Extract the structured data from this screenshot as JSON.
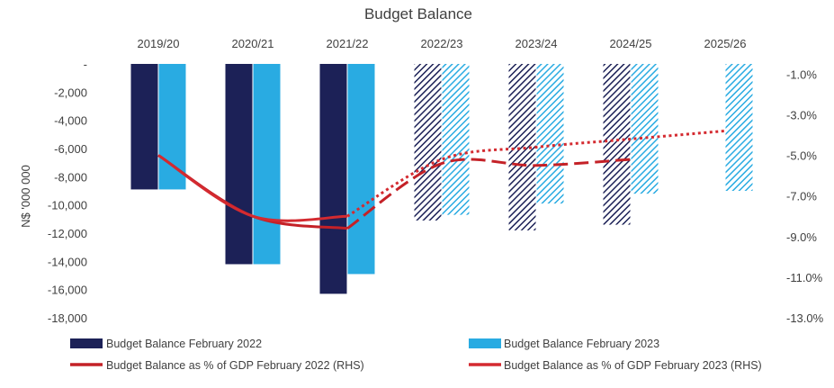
{
  "chart_data": {
    "type": "bar",
    "title": "Budget Balance",
    "ylabel": "N$ '000 000",
    "categories": [
      "2019/20",
      "2020/21",
      "2021/22",
      "2022/23",
      "2023/24",
      "2024/25",
      "2025/26"
    ],
    "ylim": [
      -18000,
      0
    ],
    "y_ticks": [
      "-",
      "-2,000",
      "-4,000",
      "-6,000",
      "-8,000",
      "-10,000",
      "-12,000",
      "-14,000",
      "-16,000",
      "-18,000"
    ],
    "y2lim": [
      -13.0,
      -0.5
    ],
    "y2_ticks": [
      "-1.0%",
      "-3.0%",
      "-5.0%",
      "-7.0%",
      "-9.0%",
      "-11.0%",
      "-13.0%"
    ],
    "series": [
      {
        "name": "Budget Balance February 2022",
        "type": "bar",
        "color": "#1c2157",
        "values": [
          -8900,
          -14200,
          -16300,
          -11100,
          -11800,
          -11400,
          null
        ],
        "hatched_from_index": 3
      },
      {
        "name": "Budget Balance February 2023",
        "type": "bar",
        "color": "#29abe2",
        "values": [
          -8900,
          -14200,
          -14900,
          -10700,
          -9900,
          -9200,
          -9000
        ],
        "hatched_from_index": 3
      },
      {
        "name": "Budget Balance as % of GDP February 2022 (RHS)",
        "type": "line",
        "color": "#c42127",
        "values": [
          -5.0,
          -8.0,
          -8.6,
          -5.4,
          -5.5,
          -5.2,
          null
        ],
        "dashed_from_index": 2
      },
      {
        "name": "Budget Balance as % of GDP February 2023 (RHS)",
        "type": "line",
        "color": "#d42a30",
        "values": [
          -5.0,
          -8.0,
          -8.0,
          -5.2,
          -4.6,
          -4.2,
          -3.8
        ],
        "dotted_from_index": 2
      }
    ],
    "legend_position": "bottom"
  }
}
